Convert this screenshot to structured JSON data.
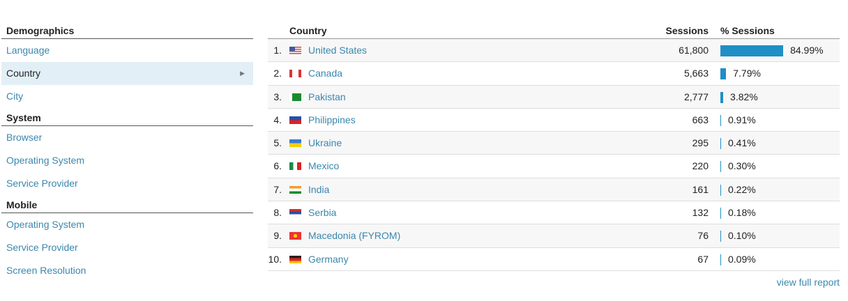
{
  "sidebar": [
    {
      "title": "Demographics",
      "items": [
        {
          "label": "Language"
        },
        {
          "label": "Country",
          "active": true
        },
        {
          "label": "City"
        }
      ]
    },
    {
      "title": "System",
      "items": [
        {
          "label": "Browser"
        },
        {
          "label": "Operating System"
        },
        {
          "label": "Service Provider"
        }
      ]
    },
    {
      "title": "Mobile",
      "items": [
        {
          "label": "Operating System"
        },
        {
          "label": "Service Provider"
        },
        {
          "label": "Screen Resolution"
        }
      ]
    }
  ],
  "table": {
    "headers": {
      "country": "Country",
      "sessions": "Sessions",
      "pct": "% Sessions"
    },
    "bar_color": "#1f8fc6",
    "rows": [
      {
        "rank": "1.",
        "flag": "us",
        "country": "United States",
        "sessions": "61,800",
        "pct": "84.99%",
        "pct_value": 84.99
      },
      {
        "rank": "2.",
        "flag": "ca",
        "country": "Canada",
        "sessions": "5,663",
        "pct": "7.79%",
        "pct_value": 7.79
      },
      {
        "rank": "3.",
        "flag": "pk",
        "country": "Pakistan",
        "sessions": "2,777",
        "pct": "3.82%",
        "pct_value": 3.82
      },
      {
        "rank": "4.",
        "flag": "ph",
        "country": "Philippines",
        "sessions": "663",
        "pct": "0.91%",
        "pct_value": 0.91
      },
      {
        "rank": "5.",
        "flag": "ua",
        "country": "Ukraine",
        "sessions": "295",
        "pct": "0.41%",
        "pct_value": 0.41
      },
      {
        "rank": "6.",
        "flag": "mx",
        "country": "Mexico",
        "sessions": "220",
        "pct": "0.30%",
        "pct_value": 0.3
      },
      {
        "rank": "7.",
        "flag": "in",
        "country": "India",
        "sessions": "161",
        "pct": "0.22%",
        "pct_value": 0.22
      },
      {
        "rank": "8.",
        "flag": "rs",
        "country": "Serbia",
        "sessions": "132",
        "pct": "0.18%",
        "pct_value": 0.18
      },
      {
        "rank": "9.",
        "flag": "mk",
        "country": "Macedonia (FYROM)",
        "sessions": "76",
        "pct": "0.10%",
        "pct_value": 0.1
      },
      {
        "rank": "10.",
        "flag": "de",
        "country": "Germany",
        "sessions": "67",
        "pct": "0.09%",
        "pct_value": 0.09
      }
    ],
    "view_full_report": "view full report"
  }
}
